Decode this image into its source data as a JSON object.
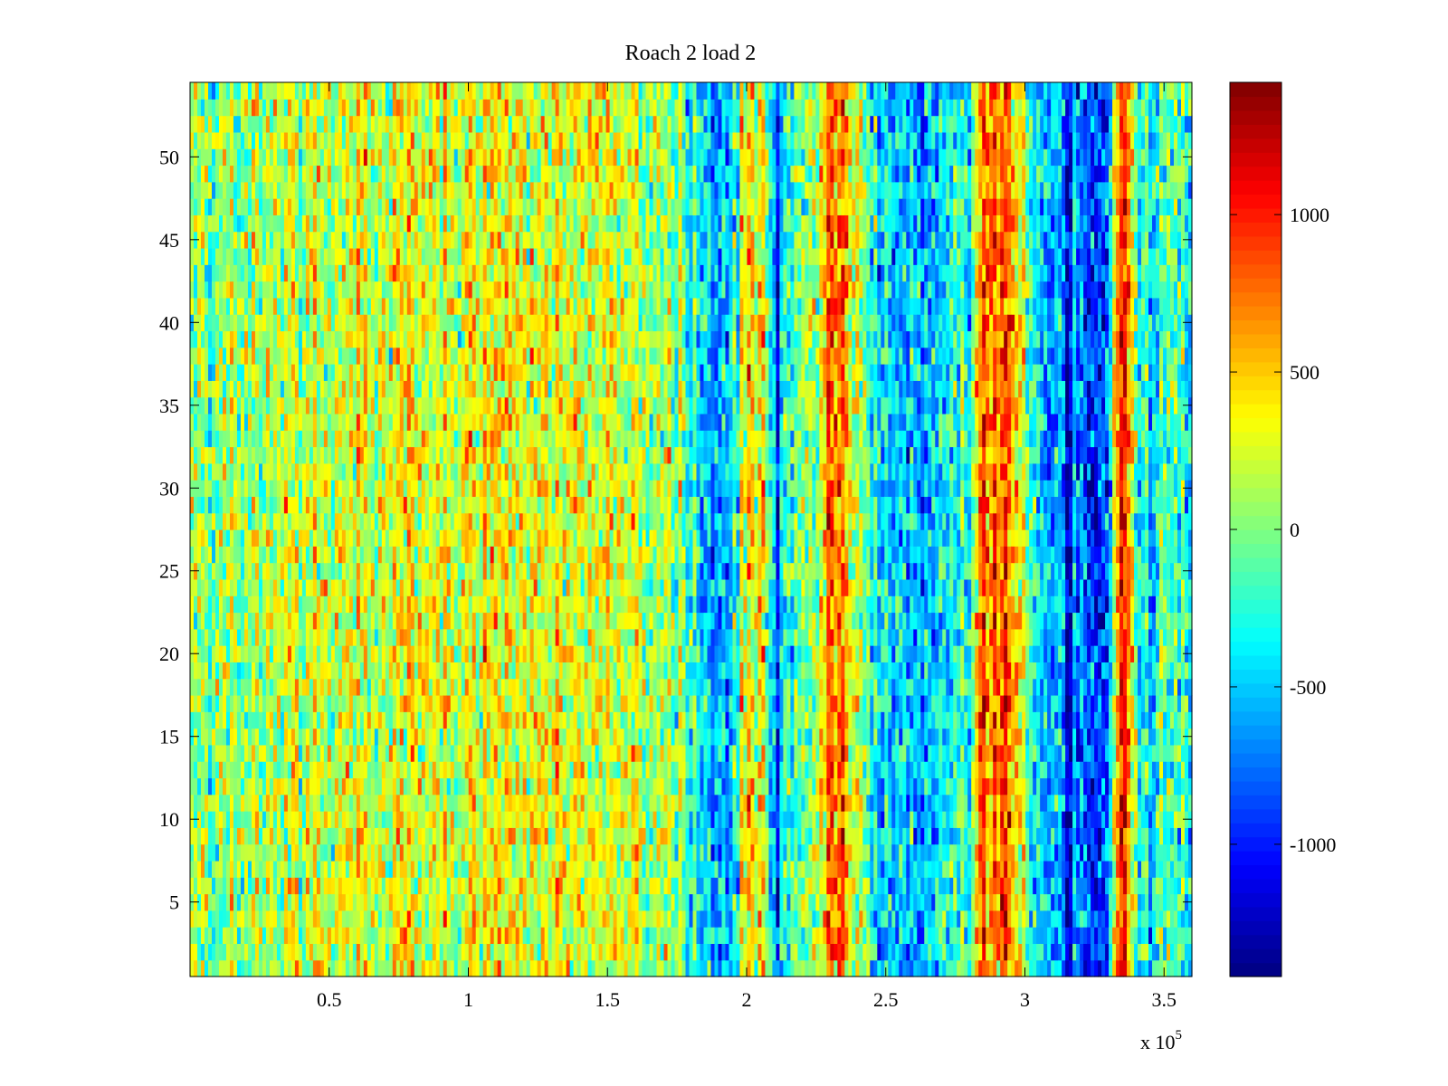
{
  "chart_data": {
    "type": "heatmap",
    "title": "Roach 2 load 2",
    "xlabel": "",
    "ylabel": "",
    "x_exponent_label": {
      "base": "x 10",
      "exponent": "5"
    },
    "xlim": [
      0,
      360000
    ],
    "ylim": [
      0.5,
      54.5
    ],
    "x_ticks": [
      50000,
      100000,
      150000,
      200000,
      250000,
      300000,
      350000
    ],
    "x_tick_labels": [
      "0.5",
      "1",
      "1.5",
      "2",
      "2.5",
      "3",
      "3.5"
    ],
    "y_ticks": [
      5,
      10,
      15,
      20,
      25,
      30,
      35,
      40,
      45,
      50
    ],
    "y_tick_labels": [
      "5",
      "10",
      "15",
      "20",
      "25",
      "30",
      "35",
      "40",
      "45",
      "50"
    ],
    "rows": 54,
    "colormap": "jet",
    "clim": [
      -1420,
      1420
    ],
    "colorbar": {
      "ticks": [
        -1000,
        -500,
        0,
        500,
        1000
      ],
      "tick_labels": [
        "-1000",
        "-500",
        "0",
        "500",
        "1000"
      ]
    },
    "column_profile": {
      "x": [
        0,
        20000,
        40000,
        60000,
        80000,
        100000,
        120000,
        140000,
        160000,
        175000,
        180000,
        185000,
        195000,
        200000,
        205000,
        210000,
        215000,
        225000,
        230000,
        235000,
        240000,
        250000,
        260000,
        270000,
        280000,
        285000,
        290000,
        295000,
        300000,
        305000,
        310000,
        315000,
        320000,
        325000,
        330000,
        334000,
        337000,
        340000,
        345000,
        360000
      ],
      "mean": [
        -50,
        50,
        120,
        250,
        300,
        300,
        260,
        260,
        200,
        100,
        -200,
        -550,
        -450,
        450,
        300,
        -500,
        -100,
        150,
        750,
        800,
        150,
        -450,
        -550,
        -400,
        -200,
        950,
        800,
        750,
        150,
        -550,
        -650,
        -500,
        -800,
        -900,
        -800,
        1100,
        900,
        -300,
        -200,
        -100
      ],
      "narrow_lines": [
        {
          "x": 211000,
          "value": -1200
        },
        {
          "x": 316000,
          "value": -1300
        }
      ],
      "noise_sd": 260
    }
  }
}
